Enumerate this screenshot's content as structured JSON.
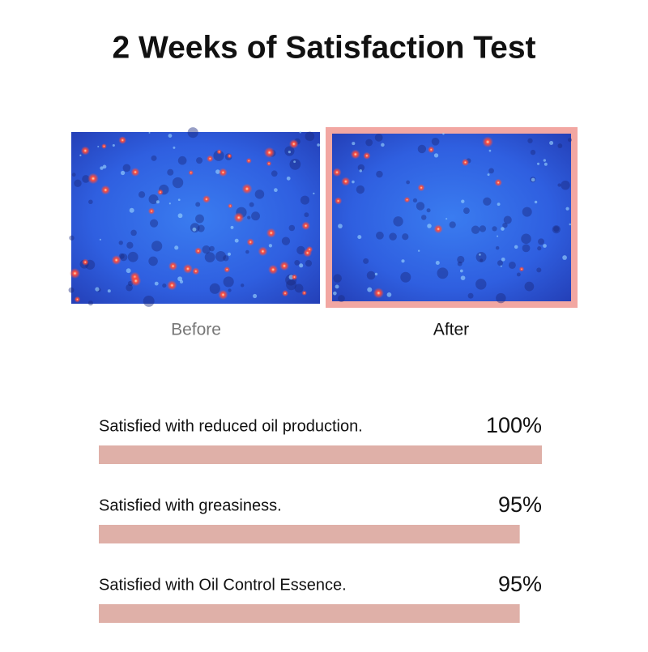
{
  "chart_data": {
    "type": "bar",
    "orientation": "horizontal",
    "title": "2 Weeks of Satisfaction Test",
    "categories": [
      "Satisfied with reduced oil production.",
      "Satisfied with greasiness.",
      "Satisfied with Oil Control Essence."
    ],
    "values": [
      100,
      95,
      95
    ],
    "value_labels": [
      "100%",
      "95%",
      "95%"
    ],
    "color": "#dfb0a8",
    "xlim": [
      0,
      100
    ]
  },
  "images": {
    "before_label": "Before",
    "after_label": "After"
  }
}
